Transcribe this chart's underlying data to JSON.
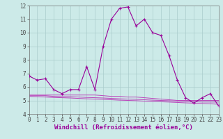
{
  "xlabel": "Windchill (Refroidissement éolien,°C)",
  "ylabel": "",
  "x": [
    0,
    1,
    2,
    3,
    4,
    5,
    6,
    7,
    8,
    9,
    10,
    11,
    12,
    13,
    14,
    15,
    16,
    17,
    18,
    19,
    20,
    21,
    22,
    23
  ],
  "main_y": [
    6.8,
    6.5,
    6.6,
    5.8,
    5.5,
    5.8,
    5.8,
    7.5,
    5.8,
    9.0,
    11.0,
    11.8,
    11.9,
    10.5,
    11.0,
    10.0,
    9.8,
    8.3,
    6.5,
    5.2,
    4.8,
    5.2,
    5.5,
    4.6
  ],
  "flat1": [
    5.4,
    5.4,
    5.4,
    5.4,
    5.4,
    5.4,
    5.4,
    5.4,
    5.4,
    5.35,
    5.3,
    5.3,
    5.25,
    5.25,
    5.2,
    5.15,
    5.1,
    5.05,
    5.0,
    5.0,
    5.0,
    5.0,
    5.0,
    5.0
  ],
  "flat2": [
    5.35,
    5.35,
    5.35,
    5.3,
    5.28,
    5.28,
    5.25,
    5.22,
    5.2,
    5.18,
    5.15,
    5.12,
    5.1,
    5.08,
    5.05,
    5.02,
    5.0,
    4.98,
    4.95,
    4.92,
    4.9,
    4.88,
    4.88,
    4.88
  ],
  "flat3": [
    5.3,
    5.28,
    5.25,
    5.22,
    5.2,
    5.18,
    5.15,
    5.12,
    5.1,
    5.08,
    5.05,
    5.02,
    5.0,
    4.98,
    4.95,
    4.92,
    4.9,
    4.88,
    4.85,
    4.82,
    4.8,
    4.78,
    4.75,
    4.72
  ],
  "ylim": [
    4,
    12
  ],
  "xlim": [
    0,
    23
  ],
  "color_main": "#990099",
  "color_flat": "#bb44bb",
  "bg_color": "#cceae8",
  "grid_color": "#aacccc",
  "tick_fontsize": 5.5,
  "xlabel_fontsize": 6.5
}
